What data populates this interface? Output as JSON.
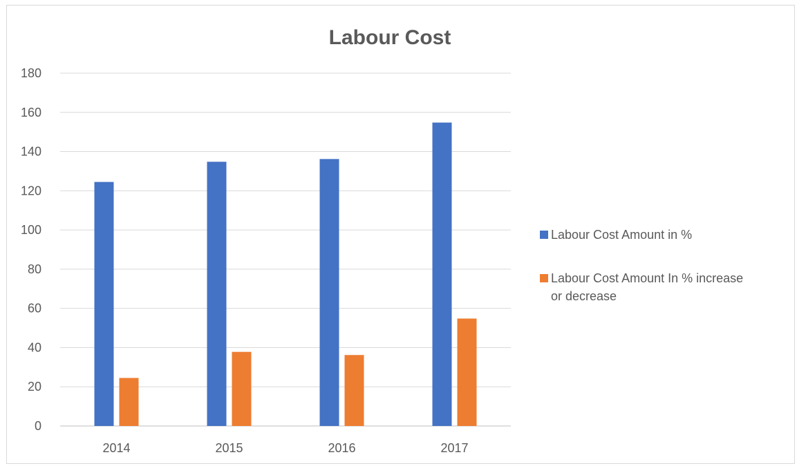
{
  "chart_data": {
    "type": "bar",
    "title": "Labour Cost",
    "categories": [
      "2014",
      "2015",
      "2016",
      "2017"
    ],
    "series": [
      {
        "name": "Labour Cost Amount in %",
        "color": "#4472C4",
        "values": [
          124.5,
          134.8,
          136.2,
          154.8
        ]
      },
      {
        "name": "Labour Cost Amount In % increase or decrease",
        "color": "#ED7D31",
        "values": [
          24.5,
          37.8,
          36.2,
          54.8
        ]
      }
    ],
    "ylim": [
      0,
      180
    ],
    "yticks": [
      "0",
      "20",
      "40",
      "60",
      "80",
      "100",
      "120",
      "140",
      "160",
      "180"
    ],
    "xlabel": "",
    "ylabel": "",
    "grid": true,
    "legend_position": "right"
  }
}
